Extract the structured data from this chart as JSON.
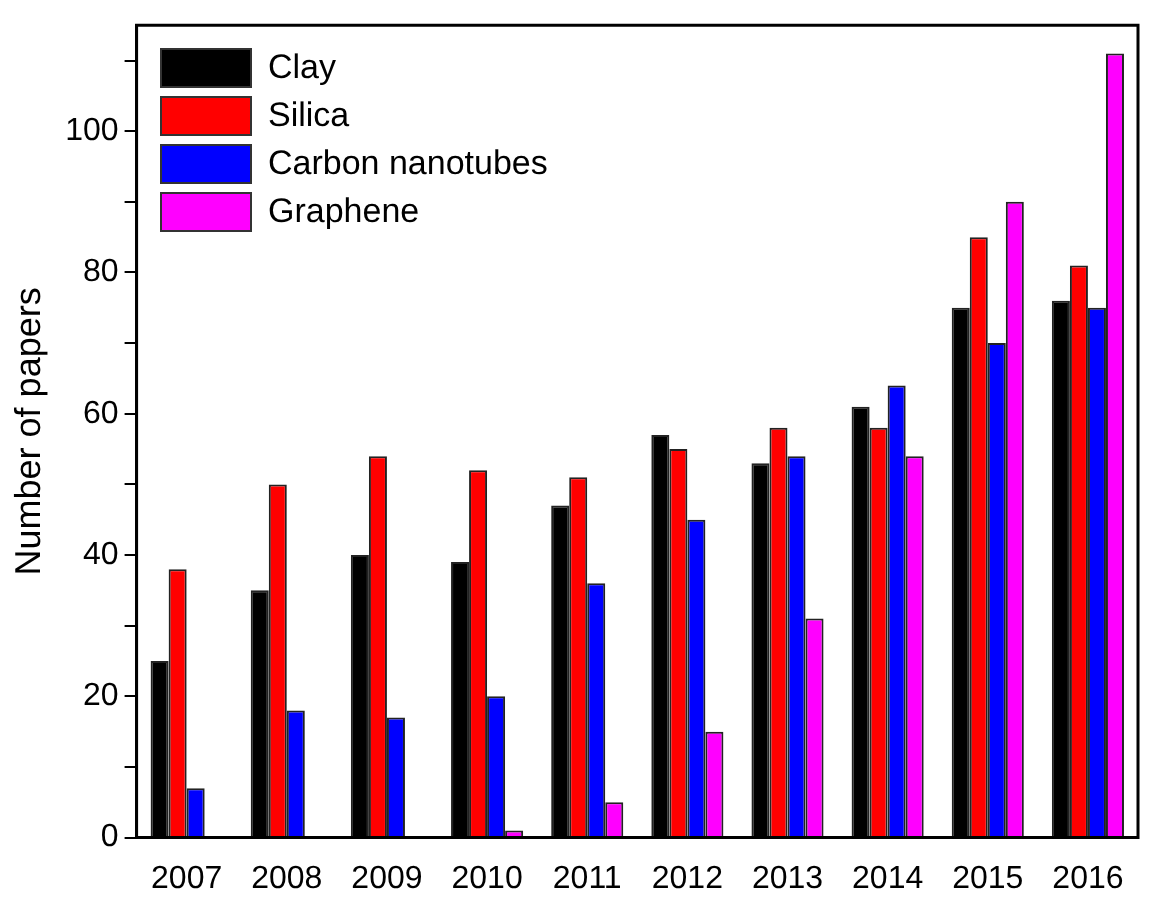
{
  "chart_data": {
    "type": "bar",
    "ylabel": "Number of papers",
    "categories": [
      "2007",
      "2008",
      "2009",
      "2010",
      "2011",
      "2012",
      "2013",
      "2014",
      "2015",
      "2016"
    ],
    "series": [
      {
        "name": "Clay",
        "color": "#000000",
        "values": [
          25,
          35,
          40,
          39,
          47,
          57,
          53,
          61,
          75,
          76
        ]
      },
      {
        "name": "Silica",
        "color": "#ff0000",
        "values": [
          38,
          50,
          54,
          52,
          51,
          55,
          58,
          58,
          85,
          81
        ]
      },
      {
        "name": "Carbon nanotubes",
        "color": "#0000ff",
        "values": [
          7,
          18,
          17,
          20,
          36,
          45,
          54,
          64,
          70,
          75
        ]
      },
      {
        "name": "Graphene",
        "color": "#ff00ff",
        "values": [
          null,
          null,
          null,
          1,
          5,
          15,
          31,
          54,
          90,
          111
        ]
      }
    ],
    "ylim": [
      0,
      115
    ],
    "yticks": [
      0,
      {
        "value": 10,
        "label": null
      },
      20,
      {
        "value": 30,
        "label": null
      },
      40,
      {
        "value": 50,
        "label": null
      },
      60,
      {
        "value": 70,
        "label": null
      },
      80,
      {
        "value": 90,
        "label": null
      },
      100,
      {
        "value": 110,
        "label": null
      }
    ],
    "grid": false,
    "legend": "top left"
  }
}
